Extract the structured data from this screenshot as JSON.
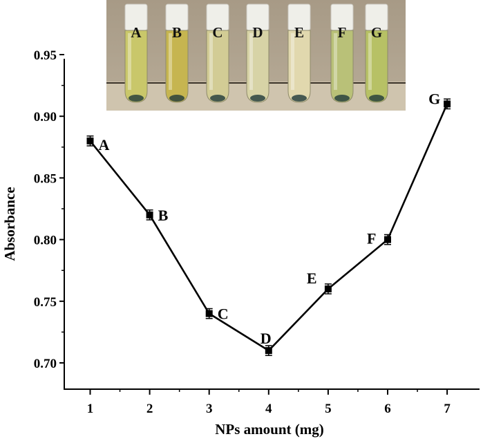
{
  "chart_data": {
    "type": "line",
    "xlabel": "NPs amount (mg)",
    "ylabel": "Absorbance",
    "xlim": [
      0.5,
      7.5
    ],
    "ylim": [
      0.68,
      0.95
    ],
    "x_ticks": [
      "1",
      "2",
      "3",
      "4",
      "5",
      "6",
      "7"
    ],
    "y_ticks": [
      "0.70",
      "0.75",
      "0.80",
      "0.85",
      "0.90",
      "0.95"
    ],
    "series": [
      {
        "x": [
          1,
          2,
          3,
          4,
          5,
          6,
          7
        ],
        "y": [
          0.88,
          0.82,
          0.74,
          0.71,
          0.76,
          0.8,
          0.91
        ],
        "error": [
          0.004,
          0.004,
          0.004,
          0.004,
          0.004,
          0.004,
          0.004
        ],
        "point_labels": [
          "A",
          "B",
          "C",
          "D",
          "E",
          "F",
          "G"
        ],
        "marker": "square",
        "color": "#000000"
      }
    ],
    "grid": false,
    "legend": "none"
  },
  "inset_photo": {
    "vial_labels": [
      "A",
      "B",
      "C",
      "D",
      "E",
      "F",
      "G"
    ],
    "vial_colors": [
      "#c9c76a",
      "#c6b550",
      "#d2cc95",
      "#d7d3a6",
      "#e1d8ae",
      "#b9c178",
      "#b7c165"
    ]
  }
}
